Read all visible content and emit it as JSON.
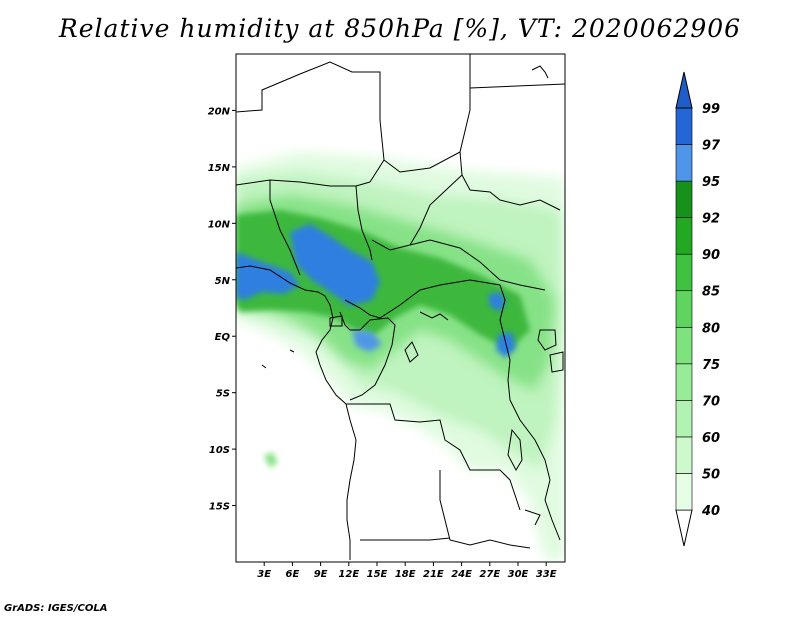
{
  "title": "Relative humidity at 850hPa [%], VT: 2020062906",
  "credit": "GrADS: IGES/COLA",
  "map": {
    "lon_range": [
      0,
      35
    ],
    "lat_range": [
      -20,
      25
    ],
    "lon_ticks": [
      {
        "value": 3,
        "label": "3E"
      },
      {
        "value": 6,
        "label": "6E"
      },
      {
        "value": 9,
        "label": "9E"
      },
      {
        "value": 12,
        "label": "12E"
      },
      {
        "value": 15,
        "label": "15E"
      },
      {
        "value": 18,
        "label": "18E"
      },
      {
        "value": 21,
        "label": "21E"
      },
      {
        "value": 24,
        "label": "24E"
      },
      {
        "value": 27,
        "label": "27E"
      },
      {
        "value": 30,
        "label": "30E"
      },
      {
        "value": 33,
        "label": "33E"
      }
    ],
    "lat_ticks": [
      {
        "value": 20,
        "label": "20N"
      },
      {
        "value": 15,
        "label": "15N"
      },
      {
        "value": 10,
        "label": "10N"
      },
      {
        "value": 5,
        "label": "5N"
      },
      {
        "value": 0,
        "label": "EQ"
      },
      {
        "value": -5,
        "label": "5S"
      },
      {
        "value": -10,
        "label": "10S"
      },
      {
        "value": -15,
        "label": "15S"
      }
    ]
  },
  "colorbar": {
    "levels": [
      "40",
      "50",
      "60",
      "70",
      "75",
      "80",
      "85",
      "90",
      "92",
      "95",
      "97",
      "99"
    ],
    "colors": [
      "#ffffff",
      "#e6fde6",
      "#cdf9cd",
      "#b2f2b2",
      "#98ec98",
      "#7ee27e",
      "#5fd55f",
      "#3fc23f",
      "#22a822",
      "#16921b",
      "#4f95e8",
      "#2466d6",
      "#1f5ec6"
    ]
  }
}
